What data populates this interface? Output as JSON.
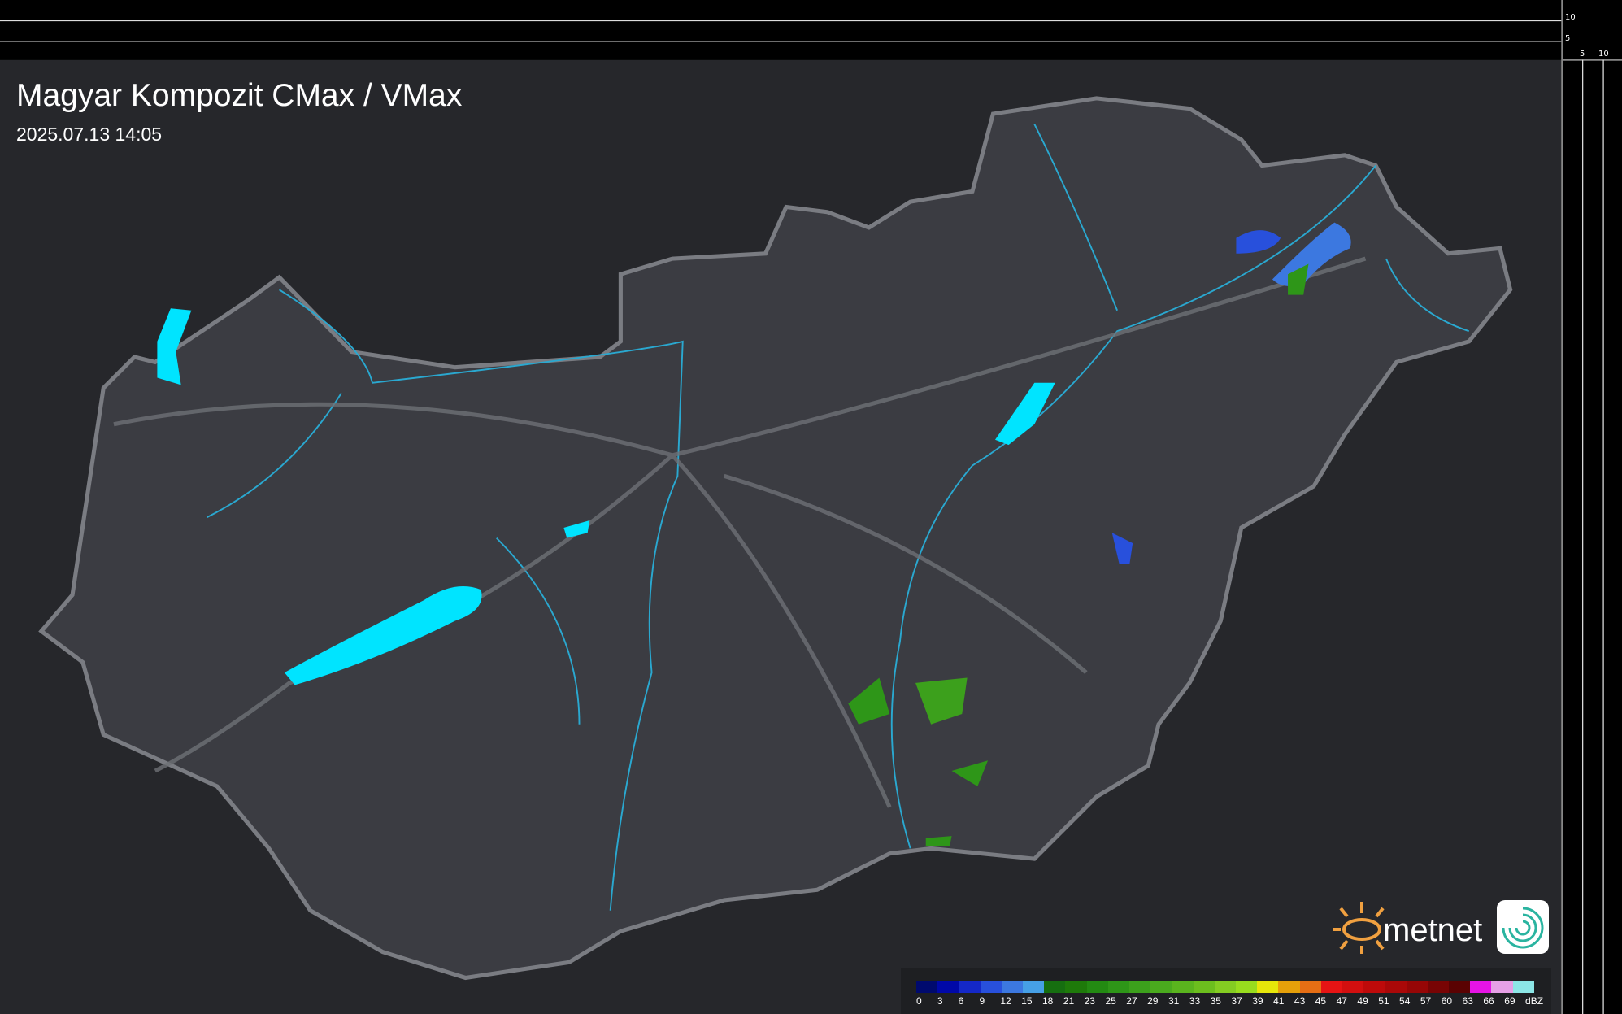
{
  "header": {
    "title": "Magyar Kompozit CMax / VMax",
    "timestamp": "2025.07.13 14:05"
  },
  "profile_axes": {
    "top_ticks": [
      "10",
      "5"
    ],
    "right_ticks": [
      "5",
      "10"
    ]
  },
  "brand": {
    "name": "metnet",
    "logo_color": "#f0a040"
  },
  "colors": {
    "land": "#3a3b40",
    "border": "#7a7c82",
    "river": "#2aa8d0",
    "lake": "#00e4ff",
    "background": "#232428"
  },
  "legend": {
    "unit": "dBZ",
    "labels": [
      "0",
      "3",
      "6",
      "9",
      "12",
      "15",
      "18",
      "21",
      "23",
      "25",
      "27",
      "29",
      "31",
      "33",
      "35",
      "37",
      "39",
      "41",
      "43",
      "45",
      "47",
      "49",
      "51",
      "54",
      "57",
      "60",
      "63",
      "66",
      "69"
    ],
    "colors": [
      "#000a6e",
      "#0008a8",
      "#1428c8",
      "#2850dc",
      "#3c78e0",
      "#46a0e6",
      "#166e10",
      "#1e7a0a",
      "#238a12",
      "#2e9618",
      "#3ca01c",
      "#4aaa1e",
      "#5ab41e",
      "#6cbe1e",
      "#84cc22",
      "#98dc1e",
      "#e6e60a",
      "#e6a00a",
      "#e66e14",
      "#e61414",
      "#d20f0f",
      "#be0a0a",
      "#aa0808",
      "#960606",
      "#780404",
      "#5a0202",
      "#e614e6",
      "#e6a0e6",
      "#8ce6e6"
    ]
  }
}
